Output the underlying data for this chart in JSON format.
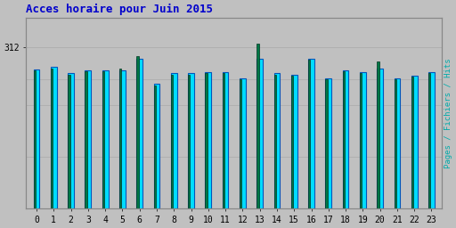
{
  "title": "Acces horaire pour Juin 2015",
  "title_color": "#0000cc",
  "title_fontsize": 9,
  "ylabel_right": "Pages / Fichiers / Hits",
  "ylabel_right_color": "#00aaaa",
  "background_color": "#c0c0c0",
  "plot_bg_color": "#c0c0c0",
  "hours": [
    0,
    1,
    2,
    3,
    4,
    5,
    6,
    7,
    8,
    9,
    10,
    11,
    12,
    13,
    14,
    15,
    16,
    17,
    18,
    19,
    20,
    21,
    22,
    23
  ],
  "hits_values": [
    270,
    275,
    262,
    268,
    268,
    268,
    290,
    242,
    262,
    262,
    265,
    265,
    252,
    290,
    262,
    260,
    290,
    252,
    268,
    265,
    272,
    252,
    258,
    265
  ],
  "pages_values": [
    268,
    272,
    260,
    266,
    266,
    272,
    295,
    238,
    260,
    260,
    263,
    263,
    250,
    320,
    260,
    258,
    288,
    250,
    266,
    263,
    285,
    250,
    256,
    263
  ],
  "bar_width": 0.35,
  "green_bar_width": 0.12,
  "ytick_value": 312,
  "grid_color": "#aaaaaa",
  "cyan_color": "#00ddff",
  "green_color": "#007744",
  "ylim_min": 0,
  "ylim_max": 370
}
